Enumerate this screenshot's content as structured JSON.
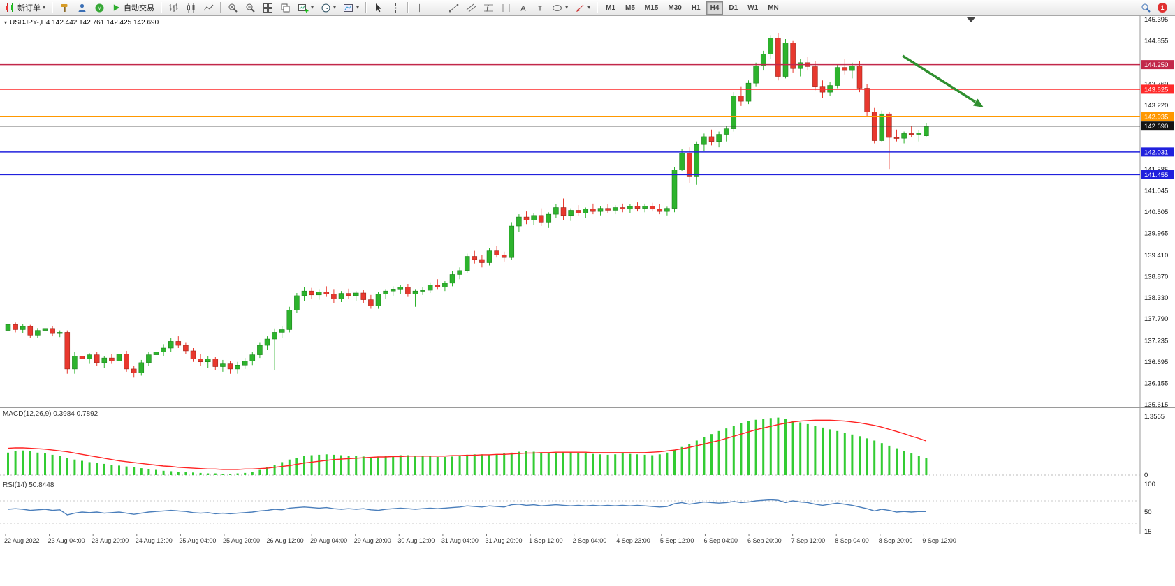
{
  "toolbar": {
    "new_order_label": "新订单",
    "auto_trading_label": "自动交易",
    "timeframes": [
      "M1",
      "M5",
      "M15",
      "M30",
      "H1",
      "H4",
      "D1",
      "W1",
      "MN"
    ],
    "active_timeframe": "H4",
    "notification_count": "1"
  },
  "chart": {
    "title_text": "USDJPY-,H4 142.442 142.761 142.425 142.690",
    "macd_label_text": "MACD(12,26,9) 0.3984 0.7892",
    "rsi_label_text": "RSI(14) 50.8448"
  },
  "chart_data": {
    "type": "candlestick",
    "symbol": "USDJPY-",
    "timeframe": "H4",
    "ohlc": {
      "open": 142.442,
      "high": 142.761,
      "low": 142.425,
      "close": 142.69
    },
    "price_axis": {
      "min": 135.615,
      "max": 145.395
    },
    "colors": {
      "bull": "#2db32d",
      "bear": "#e8382e",
      "bull_border": "#117711",
      "bear_border": "#8f1d12",
      "macd_hist": "#33cc33",
      "macd_signal": "#ff2222",
      "rsi_line": "#4a7ebb",
      "current_price": "#141414",
      "arrow": "#2f8f2f"
    },
    "candles": [
      [
        137.5,
        137.72,
        137.42,
        137.65
      ],
      [
        137.65,
        137.7,
        137.45,
        137.52
      ],
      [
        137.52,
        137.66,
        137.44,
        137.6
      ],
      [
        137.6,
        137.64,
        137.3,
        137.38
      ],
      [
        137.38,
        137.56,
        137.3,
        137.5
      ],
      [
        137.5,
        137.6,
        137.4,
        137.55
      ],
      [
        137.55,
        137.6,
        137.35,
        137.42
      ],
      [
        137.42,
        137.5,
        137.33,
        137.45
      ],
      [
        137.45,
        137.5,
        136.4,
        136.52
      ],
      [
        136.52,
        136.95,
        136.4,
        136.85
      ],
      [
        136.85,
        137.0,
        136.7,
        136.78
      ],
      [
        136.78,
        136.92,
        136.65,
        136.88
      ],
      [
        136.88,
        136.95,
        136.6,
        136.68
      ],
      [
        136.68,
        136.85,
        136.55,
        136.8
      ],
      [
        136.8,
        136.9,
        136.65,
        136.72
      ],
      [
        136.72,
        136.95,
        136.6,
        136.9
      ],
      [
        136.9,
        136.98,
        136.45,
        136.52
      ],
      [
        136.52,
        136.6,
        136.3,
        136.42
      ],
      [
        136.42,
        136.75,
        136.35,
        136.68
      ],
      [
        136.68,
        136.95,
        136.6,
        136.88
      ],
      [
        136.88,
        137.05,
        136.75,
        136.95
      ],
      [
        136.95,
        137.15,
        136.85,
        137.05
      ],
      [
        137.05,
        137.3,
        136.95,
        137.22
      ],
      [
        137.22,
        137.35,
        137.05,
        137.12
      ],
      [
        137.12,
        137.2,
        136.9,
        136.98
      ],
      [
        136.98,
        137.05,
        136.7,
        136.78
      ],
      [
        136.78,
        136.9,
        136.6,
        136.7
      ],
      [
        136.7,
        136.85,
        136.55,
        136.78
      ],
      [
        136.78,
        136.82,
        136.5,
        136.58
      ],
      [
        136.58,
        136.75,
        136.45,
        136.65
      ],
      [
        136.65,
        136.72,
        136.4,
        136.52
      ],
      [
        136.52,
        136.7,
        136.4,
        136.62
      ],
      [
        136.62,
        136.8,
        136.52,
        136.72
      ],
      [
        136.72,
        136.95,
        136.62,
        136.88
      ],
      [
        136.88,
        137.2,
        136.8,
        137.12
      ],
      [
        137.12,
        137.35,
        137.0,
        137.28
      ],
      [
        137.28,
        137.55,
        136.5,
        137.45
      ],
      [
        137.45,
        137.6,
        137.3,
        137.52
      ],
      [
        137.52,
        138.1,
        137.45,
        138.02
      ],
      [
        138.02,
        138.45,
        137.95,
        138.38
      ],
      [
        138.38,
        138.6,
        138.25,
        138.5
      ],
      [
        138.5,
        138.58,
        138.3,
        138.4
      ],
      [
        138.4,
        138.55,
        138.28,
        138.48
      ],
      [
        138.48,
        138.62,
        138.35,
        138.42
      ],
      [
        138.42,
        138.55,
        138.2,
        138.3
      ],
      [
        138.3,
        138.5,
        138.22,
        138.44
      ],
      [
        138.44,
        138.56,
        138.3,
        138.38
      ],
      [
        138.38,
        138.5,
        138.25,
        138.45
      ],
      [
        138.45,
        138.52,
        138.2,
        138.28
      ],
      [
        138.28,
        138.4,
        138.05,
        138.12
      ],
      [
        138.12,
        138.48,
        138.05,
        138.42
      ],
      [
        138.42,
        138.55,
        138.3,
        138.5
      ],
      [
        138.5,
        138.62,
        138.38,
        138.55
      ],
      [
        138.55,
        138.65,
        138.42,
        138.6
      ],
      [
        138.6,
        138.68,
        138.35,
        138.42
      ],
      [
        138.42,
        138.55,
        138.1,
        138.5
      ],
      [
        138.5,
        138.6,
        138.4,
        138.52
      ],
      [
        138.52,
        138.72,
        138.45,
        138.65
      ],
      [
        138.65,
        138.8,
        138.55,
        138.6
      ],
      [
        138.6,
        138.75,
        138.5,
        138.7
      ],
      [
        138.7,
        139.0,
        138.62,
        138.92
      ],
      [
        138.92,
        139.1,
        138.8,
        139.02
      ],
      [
        139.02,
        139.45,
        138.95,
        139.38
      ],
      [
        139.38,
        139.52,
        139.2,
        139.3
      ],
      [
        139.3,
        139.42,
        139.1,
        139.22
      ],
      [
        139.22,
        139.6,
        139.15,
        139.52
      ],
      [
        139.52,
        139.65,
        139.35,
        139.42
      ],
      [
        139.42,
        139.5,
        139.25,
        139.35
      ],
      [
        139.35,
        140.25,
        139.3,
        140.15
      ],
      [
        140.15,
        140.45,
        140.0,
        140.38
      ],
      [
        140.38,
        140.52,
        140.2,
        140.3
      ],
      [
        140.3,
        140.48,
        140.18,
        140.42
      ],
      [
        140.42,
        140.6,
        140.15,
        140.25
      ],
      [
        140.25,
        140.5,
        140.1,
        140.45
      ],
      [
        140.45,
        140.7,
        140.35,
        140.62
      ],
      [
        140.62,
        140.85,
        140.3,
        140.42
      ],
      [
        140.42,
        140.6,
        140.28,
        140.55
      ],
      [
        140.55,
        140.68,
        140.4,
        140.48
      ],
      [
        140.48,
        140.62,
        140.35,
        140.58
      ],
      [
        140.58,
        140.72,
        140.45,
        140.52
      ],
      [
        140.52,
        140.66,
        140.42,
        140.6
      ],
      [
        140.6,
        140.7,
        140.48,
        140.55
      ],
      [
        140.55,
        140.68,
        140.45,
        140.62
      ],
      [
        140.62,
        140.72,
        140.5,
        140.58
      ],
      [
        140.58,
        140.7,
        140.48,
        140.65
      ],
      [
        140.65,
        140.75,
        140.52,
        140.6
      ],
      [
        140.6,
        140.72,
        140.5,
        140.66
      ],
      [
        140.66,
        140.74,
        140.52,
        140.58
      ],
      [
        140.58,
        140.7,
        140.45,
        140.52
      ],
      [
        140.52,
        140.64,
        140.42,
        140.6
      ],
      [
        140.6,
        141.65,
        140.5,
        141.58
      ],
      [
        141.58,
        142.1,
        141.55,
        142.0
      ],
      [
        142.0,
        142.15,
        141.25,
        141.4
      ],
      [
        141.4,
        142.3,
        141.2,
        142.22
      ],
      [
        142.22,
        142.5,
        142.05,
        142.42
      ],
      [
        142.42,
        142.6,
        142.2,
        142.3
      ],
      [
        142.3,
        142.55,
        142.15,
        142.48
      ],
      [
        142.48,
        142.7,
        142.3,
        142.62
      ],
      [
        142.62,
        143.55,
        142.55,
        143.45
      ],
      [
        143.45,
        143.7,
        143.2,
        143.32
      ],
      [
        143.32,
        143.85,
        143.25,
        143.78
      ],
      [
        143.78,
        144.3,
        143.7,
        144.22
      ],
      [
        144.22,
        144.6,
        144.1,
        144.52
      ],
      [
        144.52,
        145.0,
        144.4,
        144.92
      ],
      [
        144.92,
        145.05,
        143.85,
        143.95
      ],
      [
        143.95,
        144.9,
        143.9,
        144.8
      ],
      [
        144.8,
        144.85,
        144.05,
        144.15
      ],
      [
        144.15,
        144.4,
        143.95,
        144.3
      ],
      [
        144.3,
        144.45,
        144.1,
        144.2
      ],
      [
        144.2,
        144.35,
        143.6,
        143.7
      ],
      [
        143.7,
        143.85,
        143.4,
        143.55
      ],
      [
        143.55,
        143.8,
        143.45,
        143.72
      ],
      [
        143.72,
        144.25,
        143.65,
        144.18
      ],
      [
        144.18,
        144.4,
        144.0,
        144.1
      ],
      [
        144.1,
        144.3,
        143.9,
        144.22
      ],
      [
        144.22,
        144.35,
        143.55,
        143.65
      ],
      [
        143.65,
        143.75,
        142.95,
        143.05
      ],
      [
        143.05,
        143.15,
        142.25,
        142.32
      ],
      [
        142.32,
        143.08,
        142.28,
        143.0
      ],
      [
        143.0,
        143.05,
        141.6,
        142.4
      ],
      [
        142.4,
        142.6,
        142.3,
        142.38
      ],
      [
        142.38,
        142.55,
        142.25,
        142.5
      ],
      [
        142.5,
        142.7,
        142.4,
        142.48
      ],
      [
        142.48,
        142.58,
        142.3,
        142.52
      ],
      [
        142.442,
        142.761,
        142.425,
        142.69
      ]
    ],
    "levels": [
      {
        "price": 144.25,
        "label": "144.250",
        "color": "#c2284a"
      },
      {
        "price": 143.625,
        "label": "143.625",
        "color": "#ff2a2a"
      },
      {
        "price": 142.935,
        "label": "142.935",
        "color": "#ff9800"
      },
      {
        "price": 142.031,
        "label": "142.031",
        "color": "#2020dd"
      },
      {
        "price": 141.455,
        "label": "141.455",
        "color": "#2020dd"
      }
    ],
    "current_price": {
      "value": 142.69,
      "label": "142.690",
      "color": "#141414"
    },
    "price_scale": [
      {
        "value": 145.395,
        "label": "145.395"
      },
      {
        "value": 144.855,
        "label": "144.855"
      },
      {
        "value": 143.76,
        "label": "143.760"
      },
      {
        "value": 143.22,
        "label": "143.220"
      },
      {
        "value": 141.585,
        "label": "141.585"
      },
      {
        "value": 141.045,
        "label": "141.045"
      },
      {
        "value": 140.505,
        "label": "140.505"
      },
      {
        "value": 139.965,
        "label": "139.965"
      },
      {
        "value": 139.41,
        "label": "139.410"
      },
      {
        "value": 138.87,
        "label": "138.870"
      },
      {
        "value": 138.33,
        "label": "138.330"
      },
      {
        "value": 137.79,
        "label": "137.790"
      },
      {
        "value": 137.235,
        "label": "137.235"
      },
      {
        "value": 136.695,
        "label": "136.695"
      },
      {
        "value": 136.155,
        "label": "136.155"
      },
      {
        "value": 135.615,
        "label": "135.615"
      }
    ],
    "time_labels": [
      "22 Aug 2022",
      "23 Aug 04:00",
      "23 Aug 20:00",
      "24 Aug 12:00",
      "25 Aug 04:00",
      "25 Aug 20:00",
      "26 Aug 12:00",
      "29 Aug 04:00",
      "29 Aug 20:00",
      "30 Aug 12:00",
      "31 Aug 04:00",
      "31 Aug 20:00",
      "1 Sep 12:00",
      "2 Sep 04:00",
      "4 Sep 23:00",
      "5 Sep 12:00",
      "6 Sep 04:00",
      "6 Sep 20:00",
      "7 Sep 12:00",
      "8 Sep 04:00",
      "8 Sep 20:00",
      "9 Sep 12:00"
    ],
    "arrow_annotation": {
      "shape": "arrow",
      "direction": "down-right",
      "color": "#2f8f2f"
    },
    "macd": {
      "label": "MACD(12,26,9)",
      "main_value": 0.3984,
      "signal_value": 0.7892,
      "scale_max": 1.3565,
      "scale_max_label": "1.3565",
      "scale_min_label": "0",
      "histogram": [
        0.52,
        0.55,
        0.57,
        0.55,
        0.52,
        0.5,
        0.47,
        0.44,
        0.4,
        0.36,
        0.33,
        0.3,
        0.28,
        0.26,
        0.24,
        0.22,
        0.2,
        0.18,
        0.16,
        0.14,
        0.12,
        0.1,
        0.09,
        0.08,
        0.07,
        0.06,
        0.05,
        0.04,
        0.04,
        0.03,
        0.03,
        0.04,
        0.05,
        0.08,
        0.12,
        0.18,
        0.24,
        0.3,
        0.36,
        0.4,
        0.44,
        0.46,
        0.47,
        0.48,
        0.47,
        0.46,
        0.45,
        0.44,
        0.43,
        0.42,
        0.43,
        0.44,
        0.45,
        0.46,
        0.46,
        0.45,
        0.44,
        0.43,
        0.42,
        0.42,
        0.43,
        0.45,
        0.47,
        0.48,
        0.48,
        0.47,
        0.48,
        0.5,
        0.52,
        0.54,
        0.55,
        0.54,
        0.52,
        0.5,
        0.52,
        0.54,
        0.53,
        0.51,
        0.5,
        0.49,
        0.48,
        0.47,
        0.48,
        0.5,
        0.49,
        0.48,
        0.47,
        0.46,
        0.48,
        0.52,
        0.58,
        0.65,
        0.72,
        0.8,
        0.88,
        0.95,
        1.02,
        1.08,
        1.14,
        1.2,
        1.25,
        1.28,
        1.3,
        1.32,
        1.33,
        1.3,
        1.26,
        1.22,
        1.18,
        1.14,
        1.1,
        1.06,
        1.02,
        0.98,
        0.94,
        0.9,
        0.85,
        0.8,
        0.74,
        0.68,
        0.62,
        0.56,
        0.5,
        0.45,
        0.4
      ],
      "signal": [
        0.62,
        0.63,
        0.63,
        0.62,
        0.61,
        0.6,
        0.58,
        0.56,
        0.54,
        0.51,
        0.48,
        0.45,
        0.42,
        0.39,
        0.36,
        0.33,
        0.31,
        0.29,
        0.27,
        0.25,
        0.23,
        0.21,
        0.2,
        0.18,
        0.17,
        0.16,
        0.15,
        0.14,
        0.14,
        0.13,
        0.13,
        0.13,
        0.14,
        0.14,
        0.15,
        0.16,
        0.18,
        0.2,
        0.22,
        0.25,
        0.28,
        0.3,
        0.32,
        0.34,
        0.36,
        0.37,
        0.38,
        0.39,
        0.4,
        0.41,
        0.42,
        0.42,
        0.43,
        0.43,
        0.44,
        0.44,
        0.44,
        0.44,
        0.44,
        0.44,
        0.45,
        0.45,
        0.46,
        0.46,
        0.47,
        0.47,
        0.48,
        0.48,
        0.49,
        0.5,
        0.51,
        0.51,
        0.52,
        0.52,
        0.53,
        0.53,
        0.53,
        0.53,
        0.53,
        0.52,
        0.52,
        0.52,
        0.52,
        0.52,
        0.52,
        0.52,
        0.52,
        0.53,
        0.54,
        0.56,
        0.58,
        0.61,
        0.64,
        0.68,
        0.72,
        0.76,
        0.8,
        0.85,
        0.9,
        0.95,
        1.0,
        1.05,
        1.09,
        1.13,
        1.17,
        1.2,
        1.23,
        1.25,
        1.26,
        1.27,
        1.27,
        1.27,
        1.26,
        1.25,
        1.23,
        1.21,
        1.18,
        1.15,
        1.11,
        1.06,
        1.01,
        0.96,
        0.9,
        0.85,
        0.79
      ]
    },
    "rsi": {
      "label": "RSI(14)",
      "value": 50.8448,
      "scale_labels": [
        {
          "value": 100,
          "label": "100"
        },
        {
          "value": 50,
          "label": "50"
        },
        {
          "value": 15,
          "label": "15"
        }
      ],
      "levels": [
        70,
        30
      ],
      "values": [
        55,
        56,
        55,
        53,
        54,
        55,
        53,
        54,
        45,
        48,
        50,
        49,
        50,
        48,
        49,
        50,
        48,
        46,
        48,
        50,
        51,
        52,
        53,
        52,
        51,
        49,
        48,
        49,
        47,
        48,
        47,
        48,
        49,
        50,
        52,
        53,
        55,
        54,
        57,
        58,
        59,
        58,
        57,
        58,
        56,
        55,
        56,
        55,
        56,
        54,
        53,
        55,
        56,
        57,
        56,
        55,
        56,
        57,
        56,
        57,
        58,
        59,
        61,
        60,
        59,
        61,
        60,
        59,
        63,
        64,
        62,
        63,
        61,
        62,
        63,
        62,
        61,
        62,
        61,
        62,
        61,
        62,
        61,
        62,
        61,
        62,
        61,
        60,
        59,
        60,
        65,
        67,
        64,
        66,
        68,
        67,
        66,
        67,
        69,
        67,
        68,
        70,
        71,
        72,
        71,
        67,
        70,
        68,
        67,
        64,
        62,
        64,
        66,
        64,
        62,
        59,
        56,
        52,
        55,
        53,
        50,
        51,
        50,
        51,
        50.84
      ]
    }
  }
}
